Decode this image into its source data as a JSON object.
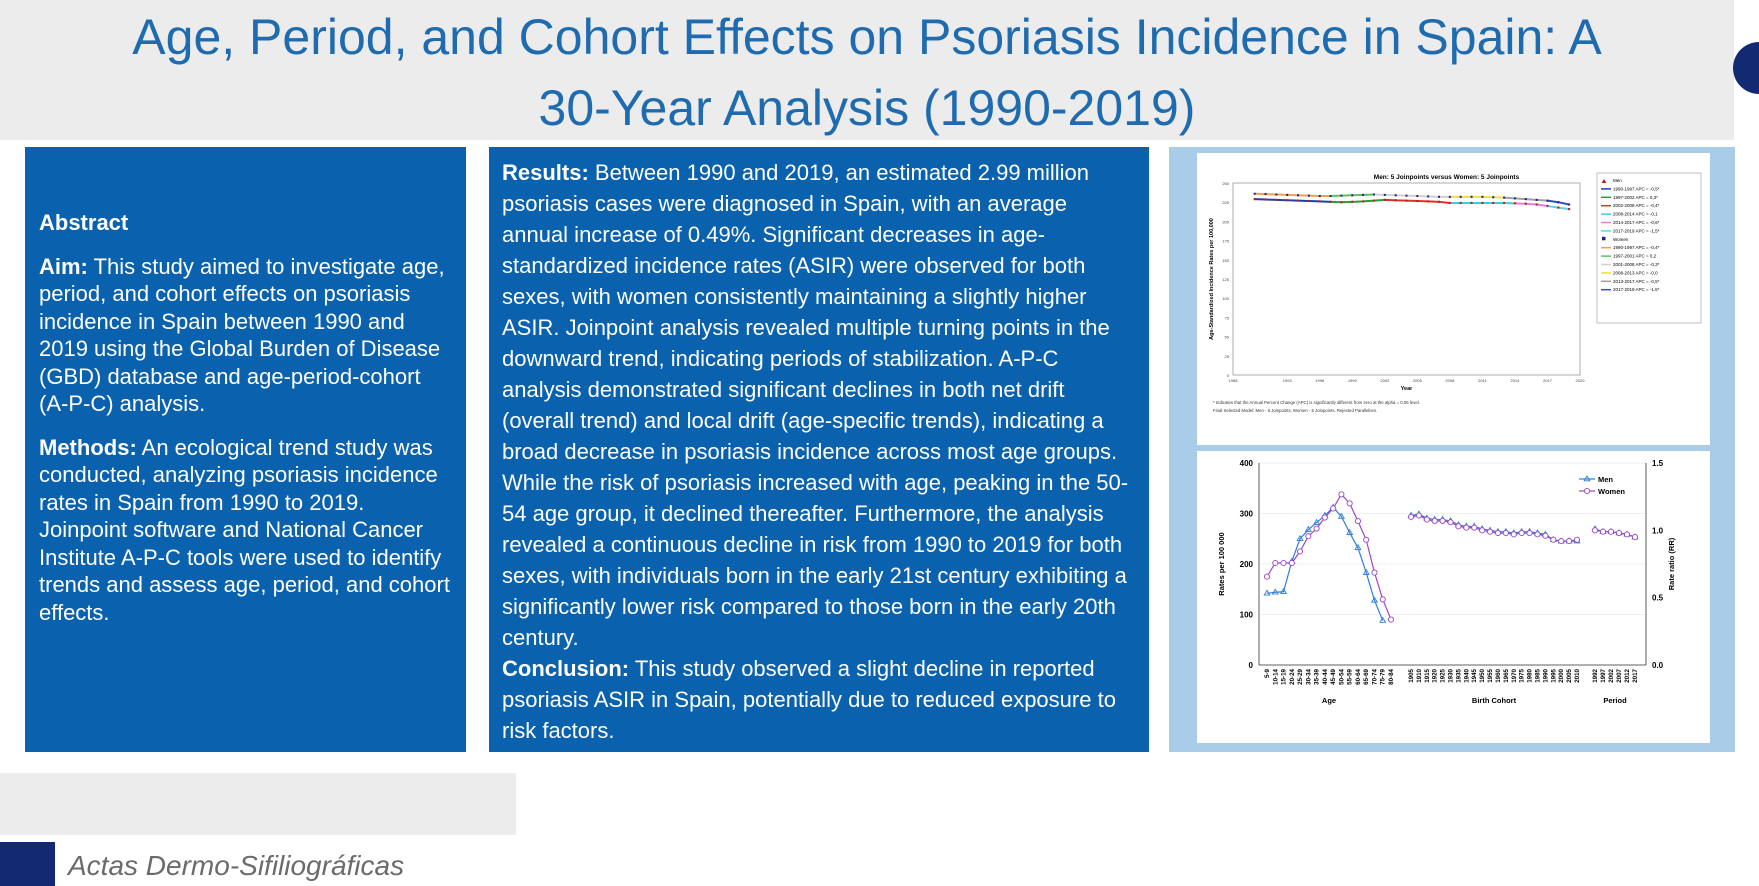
{
  "title": {
    "line1": "Age, Period, and Cohort Effects on Psoriasis Incidence in Spain: A",
    "line2": "30-Year Analysis (1990-2019)"
  },
  "abstract": {
    "heading": "Abstract",
    "aim_label": "Aim:",
    "aim_text": " This study aimed to investigate age, period, and cohort effects on psoriasis incidence in Spain between 1990 and 2019 using the Global Burden of Disease (GBD) database and age-period-cohort (A-P-C) analysis.",
    "methods_label": "Methods:",
    "methods_text": " An ecological trend study was conducted, analyzing psoriasis incidence rates in Spain from 1990 to 2019. Joinpoint software and National Cancer Institute A-P-C tools were used to identify trends and assess age, period, and cohort effects."
  },
  "results": {
    "results_label": "Results:",
    "results_text": " Between 1990 and 2019, an estimated 2.99 million psoriasis cases were diagnosed in Spain, with an average annual increase of 0.49%. Significant decreases in age-standardized incidence rates (ASIR) were observed for both sexes, with women consistently maintaining a slightly higher ASIR. Joinpoint analysis revealed multiple turning points in the downward trend, indicating periods of stabilization. A-P-C analysis demonstrated significant declines in both net drift (overall trend) and local drift (age-specific trends), indicating a broad decrease in psoriasis incidence across most age groups. While the risk of psoriasis increased with age, peaking in the 50-54 age group, it declined thereafter. Furthermore, the analysis revealed a continuous decline in risk from 1990 to 2019 for both sexes, with individuals born in the early 21st century exhibiting a significantly lower risk compared to those born in the early 20th century.",
    "conclusion_label": "Conclusion:",
    "conclusion_text": " This study observed a slight decline in reported psoriasis ASIR in Spain, potentially due to reduced exposure to risk factors."
  },
  "footer": {
    "journal": "Actas Dermo-Sifiliográficas"
  },
  "chart_data": [
    {
      "type": "line",
      "title": "Men: 5 Joinpoints versus Women: 5 Joinpoints",
      "xlabel": "Year",
      "ylabel": "Age-Standardized Incidence Rates per 100,000",
      "ylim": [
        0,
        250
      ],
      "yticks": [
        0,
        25,
        50,
        75,
        100,
        125,
        150,
        175,
        200,
        225,
        250
      ],
      "xticks": [
        1988,
        1993,
        1996,
        1999,
        2002,
        2005,
        2008,
        2011,
        2014,
        2017,
        2020
      ],
      "xlim": [
        1988,
        2020
      ],
      "legend_position": "right",
      "footnote1": "* Indicates that the Annual Percent Change (APC) is significantly different from zero at the alpha = 0.05 level.",
      "footnote2": "Final Selected Model: Men - 5 Joinpoints, Women - 5 Joinpoints. Rejected Parallelism.",
      "series": [
        {
          "name": "Men",
          "x": [
            1990,
            1991,
            1992,
            1993,
            1994,
            1995,
            1996,
            1997,
            1998,
            1999,
            2000,
            2001,
            2002,
            2003,
            2004,
            2005,
            2006,
            2007,
            2008,
            2009,
            2010,
            2011,
            2012,
            2013,
            2014,
            2015,
            2016,
            2017,
            2018,
            2019
          ],
          "y": [
            229,
            228.5,
            228,
            227.5,
            227,
            226.5,
            226,
            225.5,
            225,
            225.5,
            226,
            227,
            228,
            227.5,
            227,
            226.5,
            226,
            225.5,
            224,
            224,
            224,
            224,
            224,
            224,
            223.5,
            223,
            222,
            220,
            218,
            216
          ],
          "color": "#1c3fb0",
          "segments": [
            {
              "label": "1990-1997 APC = -0,5*",
              "color": "#1c3fb0"
            },
            {
              "label": "1997-2002 APC = 0,3*",
              "color": "#2a9a3a"
            },
            {
              "label": "2002-2008 APC = -0,4*",
              "color": "#e0302a"
            },
            {
              "label": "2008-2014 APC = -0,1",
              "color": "#3ad0e0"
            },
            {
              "label": "2014-2017 APC = -0,6*",
              "color": "#e080e0"
            },
            {
              "label": "2017-2019 APC = -1,5*",
              "color": "#60d0f0"
            }
          ]
        },
        {
          "name": "Women",
          "x": [
            1990,
            1991,
            1992,
            1993,
            1994,
            1995,
            1996,
            1997,
            1998,
            1999,
            2000,
            2001,
            2002,
            2003,
            2004,
            2005,
            2006,
            2007,
            2008,
            2009,
            2010,
            2011,
            2012,
            2013,
            2014,
            2015,
            2016,
            2017,
            2018,
            2019
          ],
          "y": [
            236,
            235.5,
            235,
            234.5,
            234,
            233.5,
            233,
            233,
            233.5,
            234,
            234.5,
            235,
            234.5,
            234,
            233.5,
            233,
            232.5,
            232,
            232,
            232,
            232,
            232,
            231.5,
            231,
            230,
            229,
            228,
            227,
            225,
            222
          ],
          "color": "#1a237e",
          "segments": [
            {
              "label": "1990-1997 APC = -0,4*",
              "color": "#f0a050"
            },
            {
              "label": "1997-2001 APC = 0,2",
              "color": "#60c060"
            },
            {
              "label": "2001-2008 APC = -0,3*",
              "color": "#d0d0d0"
            },
            {
              "label": "2008-2013 APC = -0,0",
              "color": "#f0e040"
            },
            {
              "label": "2013-2017 APC = -0,5*",
              "color": "#a0a0a0"
            },
            {
              "label": "2017-2019 APC = -1,5*",
              "color": "#3050c0"
            }
          ]
        }
      ]
    },
    {
      "type": "line",
      "title": "",
      "ylabel": "Rates per 100 000",
      "ylabel_right": "Rate ratio (RR)",
      "ylim": [
        0,
        400
      ],
      "yticks": [
        0,
        100,
        200,
        300,
        400
      ],
      "ylim_right": [
        0,
        1.5
      ],
      "yticks_right": [
        "0.0",
        "0.5",
        "1.0",
        "1.5"
      ],
      "legend_position": "top-right",
      "panels": [
        {
          "xlabel": "Age",
          "categories": [
            "5-9",
            "10-14",
            "15-19",
            "20-24",
            "25-29",
            "30-34",
            "35-39",
            "40-44",
            "45-49",
            "50-54",
            "55-59",
            "60-64",
            "65-69",
            "70-74",
            "75-79",
            "80-84"
          ],
          "axis": "left",
          "series": [
            {
              "name": "Men",
              "values": [
                142,
                144,
                145,
                205,
                250,
                268,
                282,
                296,
                312,
                294,
                262,
                232,
                183,
                128,
                88,
                null
              ]
            },
            {
              "name": "Women",
              "values": [
                175,
                202,
                202,
                202,
                225,
                255,
                270,
                292,
                310,
                338,
                320,
                285,
                248,
                183,
                130,
                90
              ]
            }
          ]
        },
        {
          "xlabel": "Birth Cohort",
          "categories": [
            "1905",
            "1910",
            "1915",
            "1920",
            "1925",
            "1930",
            "1935",
            "1940",
            "1945",
            "1950",
            "1955",
            "1960",
            "1965",
            "1970",
            "1975",
            "1980",
            "1985",
            "1990",
            "1995",
            "2000",
            "2005",
            "2010"
          ],
          "axis": "right",
          "series": [
            {
              "name": "Men",
              "values": [
                1.11,
                1.12,
                1.09,
                1.08,
                1.08,
                1.07,
                1.04,
                1.03,
                1.03,
                1.01,
                1.0,
                0.99,
                0.99,
                0.98,
                0.99,
                0.99,
                0.98,
                0.97,
                0.93,
                0.92,
                0.92,
                0.92
              ]
            },
            {
              "name": "Women",
              "values": [
                1.1,
                1.11,
                1.08,
                1.07,
                1.07,
                1.06,
                1.03,
                1.02,
                1.02,
                1.0,
                0.99,
                0.98,
                0.98,
                0.97,
                0.98,
                0.98,
                0.97,
                0.96,
                0.93,
                0.92,
                0.92,
                0.93
              ]
            }
          ]
        },
        {
          "xlabel": "Period",
          "categories": [
            "1992",
            "1997",
            "2002",
            "2007",
            "2012",
            "2017"
          ],
          "axis": "right",
          "series": [
            {
              "name": "Men",
              "values": [
                1.01,
                0.99,
                0.99,
                0.98,
                0.97,
                0.95
              ]
            },
            {
              "name": "Women",
              "values": [
                1.0,
                0.99,
                0.99,
                0.98,
                0.97,
                0.95
              ]
            }
          ]
        }
      ]
    }
  ]
}
